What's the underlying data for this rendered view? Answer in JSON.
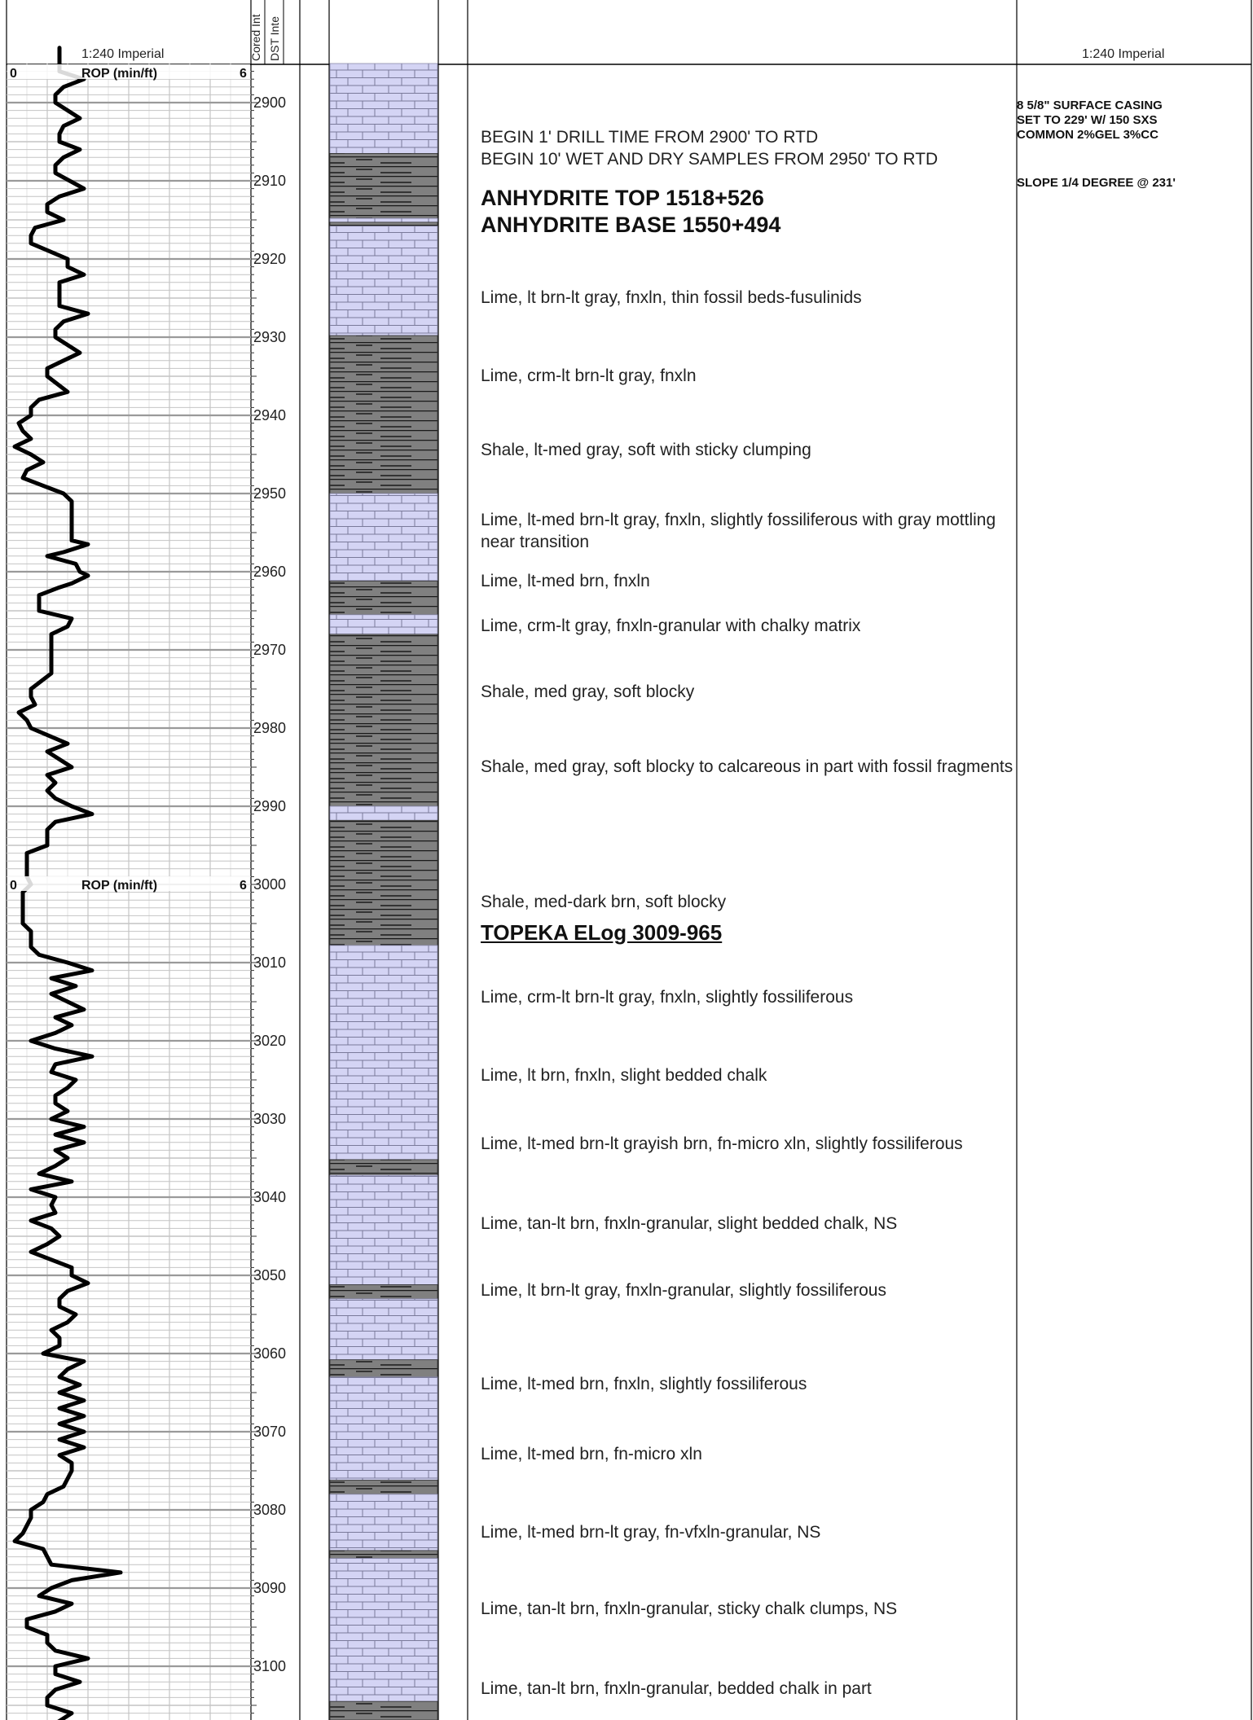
{
  "header": {
    "scale_left": "1:240 Imperial",
    "scale_right": "1:240 Imperial",
    "cored_label": "Cored Int",
    "dst_label": "DST Inte"
  },
  "rop_track": {
    "label": "ROP (min/ft)",
    "min_label": "0",
    "max_label": "6",
    "repeat_at_depth": 3000
  },
  "depth": {
    "top": 2892,
    "bottom": 3108,
    "labels": [
      "2900",
      "2910",
      "2920",
      "2930",
      "2940",
      "2950",
      "2960",
      "2970",
      "2980",
      "2990",
      "3000",
      "3010",
      "3020",
      "3030",
      "3040",
      "3050",
      "3060",
      "3070",
      "3080",
      "3090",
      "3100"
    ]
  },
  "lithology": [
    {
      "from": 2892.5,
      "to": 2906.5,
      "rock": "lime"
    },
    {
      "from": 2906.5,
      "to": 2914.8,
      "rock": "shale"
    },
    {
      "from": 2914.8,
      "to": 2915.3,
      "rock": "lime"
    },
    {
      "from": 2915.3,
      "to": 2915.8,
      "rock": "shale"
    },
    {
      "from": 2915.8,
      "to": 2929.8,
      "rock": "lime"
    },
    {
      "from": 2929.8,
      "to": 2950.0,
      "rock": "shale"
    },
    {
      "from": 2950.0,
      "to": 2961.2,
      "rock": "lime"
    },
    {
      "from": 2961.2,
      "to": 2965.5,
      "rock": "shale"
    },
    {
      "from": 2965.5,
      "to": 2968.0,
      "rock": "lime"
    },
    {
      "from": 2968.0,
      "to": 2990.0,
      "rock": "shale"
    },
    {
      "from": 2990.0,
      "to": 2991.8,
      "rock": "lime"
    },
    {
      "from": 2991.8,
      "to": 3007.8,
      "rock": "shale"
    },
    {
      "from": 3007.8,
      "to": 3035.2,
      "rock": "lime"
    },
    {
      "from": 3035.2,
      "to": 3037.2,
      "rock": "shale"
    },
    {
      "from": 3037.2,
      "to": 3051.2,
      "rock": "lime"
    },
    {
      "from": 3051.2,
      "to": 3053.0,
      "rock": "shale"
    },
    {
      "from": 3053.0,
      "to": 3060.8,
      "rock": "lime"
    },
    {
      "from": 3060.8,
      "to": 3063.0,
      "rock": "shale"
    },
    {
      "from": 3063.0,
      "to": 3076.2,
      "rock": "lime"
    },
    {
      "from": 3076.2,
      "to": 3078.0,
      "rock": "shale"
    },
    {
      "from": 3078.0,
      "to": 3085.2,
      "rock": "lime"
    },
    {
      "from": 3085.2,
      "to": 3086.2,
      "rock": "shale"
    },
    {
      "from": 3086.2,
      "to": 3104.5,
      "rock": "lime"
    },
    {
      "from": 3104.5,
      "to": 3108.0,
      "rock": "shale"
    }
  ],
  "rop_curve": [
    [
      2893,
      1.3
    ],
    [
      2894,
      1.3
    ],
    [
      2896,
      1.3
    ],
    [
      2897,
      1.9
    ],
    [
      2898,
      1.4
    ],
    [
      2899,
      1.2
    ],
    [
      2900,
      1.2
    ],
    [
      2902,
      1.8
    ],
    [
      2903,
      1.4
    ],
    [
      2904,
      1.3
    ],
    [
      2905,
      1.3
    ],
    [
      2906,
      1.8
    ],
    [
      2907,
      1.4
    ],
    [
      2908,
      1.2
    ],
    [
      2909,
      1.2
    ],
    [
      2911,
      1.9
    ],
    [
      2912,
      1.3
    ],
    [
      2913,
      1.0
    ],
    [
      2914,
      1.0
    ],
    [
      2915,
      1.4
    ],
    [
      2916,
      0.7
    ],
    [
      2917,
      0.6
    ],
    [
      2918,
      0.6
    ],
    [
      2920,
      1.5
    ],
    [
      2921,
      1.5
    ],
    [
      2922,
      1.9
    ],
    [
      2923,
      1.3
    ],
    [
      2924,
      1.3
    ],
    [
      2925,
      1.3
    ],
    [
      2926,
      1.3
    ],
    [
      2927,
      2.0
    ],
    [
      2928,
      1.4
    ],
    [
      2929,
      1.2
    ],
    [
      2930,
      1.2
    ],
    [
      2932,
      1.8
    ],
    [
      2933,
      1.4
    ],
    [
      2934,
      1.0
    ],
    [
      2935,
      1.0
    ],
    [
      2937,
      1.5
    ],
    [
      2938,
      0.8
    ],
    [
      2939,
      0.6
    ],
    [
      2940,
      0.6
    ],
    [
      2941,
      0.3
    ],
    [
      2942,
      0.4
    ],
    [
      2943,
      0.6
    ],
    [
      2944,
      0.2
    ],
    [
      2945,
      0.6
    ],
    [
      2946,
      0.9
    ],
    [
      2947,
      0.5
    ],
    [
      2948,
      0.4
    ],
    [
      2949,
      0.9
    ],
    [
      2950,
      1.4
    ],
    [
      2951,
      1.6
    ],
    [
      2952,
      1.6
    ],
    [
      2953,
      1.6
    ],
    [
      2954,
      1.6
    ],
    [
      2955,
      1.6
    ],
    [
      2956,
      1.6
    ],
    [
      2956.5,
      2.0
    ],
    [
      2957.5,
      1.4
    ],
    [
      2958,
      1.0
    ],
    [
      2959,
      1.7
    ],
    [
      2960,
      1.8
    ],
    [
      2960.5,
      2.0
    ],
    [
      2961.5,
      1.6
    ],
    [
      2962,
      1.3
    ],
    [
      2963,
      0.8
    ],
    [
      2964,
      0.8
    ],
    [
      2965,
      0.8
    ],
    [
      2966,
      1.6
    ],
    [
      2967,
      1.5
    ],
    [
      2968,
      1.1
    ],
    [
      2969,
      1.1
    ],
    [
      2970,
      1.1
    ],
    [
      2971,
      1.1
    ],
    [
      2972,
      1.1
    ],
    [
      2973,
      1.1
    ],
    [
      2975,
      0.6
    ],
    [
      2976,
      0.6
    ],
    [
      2977,
      0.7
    ],
    [
      2978,
      0.3
    ],
    [
      2979,
      0.5
    ],
    [
      2980,
      0.6
    ],
    [
      2982,
      1.5
    ],
    [
      2983,
      1.0
    ],
    [
      2985,
      1.6
    ],
    [
      2986,
      1.0
    ],
    [
      2987,
      1.2
    ],
    [
      2988,
      1.0
    ],
    [
      2989,
      1.2
    ],
    [
      2990,
      1.6
    ],
    [
      2991,
      2.1
    ],
    [
      2992,
      1.2
    ],
    [
      2993,
      1.0
    ],
    [
      2994,
      1.0
    ],
    [
      2995,
      1.0
    ],
    [
      2996,
      0.5
    ],
    [
      2997,
      0.5
    ],
    [
      2998,
      0.5
    ],
    [
      2999,
      0.5
    ],
    [
      3000,
      0.6
    ],
    [
      3001,
      0.4
    ],
    [
      3002,
      0.4
    ],
    [
      3003,
      0.4
    ],
    [
      3004,
      0.4
    ],
    [
      3005,
      0.4
    ],
    [
      3006,
      0.6
    ],
    [
      3007,
      0.6
    ],
    [
      3008,
      0.6
    ],
    [
      3009,
      0.8
    ],
    [
      3010,
      1.5
    ],
    [
      3011,
      2.1
    ],
    [
      3012,
      1.1
    ],
    [
      3013,
      1.7
    ],
    [
      3014,
      1.1
    ],
    [
      3015,
      1.5
    ],
    [
      3016,
      1.9
    ],
    [
      3017,
      1.2
    ],
    [
      3018,
      1.6
    ],
    [
      3019,
      1.2
    ],
    [
      3020,
      0.6
    ],
    [
      3021,
      1.2
    ],
    [
      3022,
      2.1
    ],
    [
      3023,
      1.2
    ],
    [
      3024,
      1.1
    ],
    [
      3025,
      1.7
    ],
    [
      3026,
      1.5
    ],
    [
      3027,
      1.2
    ],
    [
      3028,
      1.2
    ],
    [
      3029,
      1.5
    ],
    [
      3030,
      1.1
    ],
    [
      3031,
      1.9
    ],
    [
      3032,
      1.2
    ],
    [
      3033,
      1.9
    ],
    [
      3034,
      1.2
    ],
    [
      3035,
      1.5
    ],
    [
      3036,
      1.2
    ],
    [
      3037,
      0.8
    ],
    [
      3038,
      1.6
    ],
    [
      3039,
      0.6
    ],
    [
      3040,
      1.2
    ],
    [
      3041,
      1.1
    ],
    [
      3042,
      1.2
    ],
    [
      3043,
      0.6
    ],
    [
      3044,
      1.1
    ],
    [
      3045,
      1.3
    ],
    [
      3046,
      1.0
    ],
    [
      3047,
      0.6
    ],
    [
      3048,
      1.1
    ],
    [
      3049,
      1.6
    ],
    [
      3050,
      1.6
    ],
    [
      3051,
      2.0
    ],
    [
      3052,
      1.5
    ],
    [
      3053,
      1.3
    ],
    [
      3054,
      1.3
    ],
    [
      3055,
      1.7
    ],
    [
      3056,
      1.5
    ],
    [
      3057,
      1.1
    ],
    [
      3058,
      1.3
    ],
    [
      3059,
      1.3
    ],
    [
      3060,
      0.9
    ],
    [
      3061,
      1.9
    ],
    [
      3062,
      1.5
    ],
    [
      3063,
      1.3
    ],
    [
      3064,
      1.8
    ],
    [
      3065,
      1.3
    ],
    [
      3066,
      1.9
    ],
    [
      3067,
      1.3
    ],
    [
      3068,
      1.9
    ],
    [
      3069,
      1.3
    ],
    [
      3070,
      1.9
    ],
    [
      3071,
      1.3
    ],
    [
      3072,
      1.9
    ],
    [
      3073,
      1.3
    ],
    [
      3074,
      1.6
    ],
    [
      3075,
      1.6
    ],
    [
      3076,
      1.5
    ],
    [
      3077,
      1.4
    ],
    [
      3078,
      1.0
    ],
    [
      3079,
      0.9
    ],
    [
      3080,
      0.6
    ],
    [
      3081,
      0.6
    ],
    [
      3082,
      0.5
    ],
    [
      3083,
      0.4
    ],
    [
      3084,
      0.2
    ],
    [
      3085,
      0.9
    ],
    [
      3086,
      1.0
    ],
    [
      3087,
      1.1
    ],
    [
      3088,
      2.8
    ],
    [
      3089,
      1.6
    ],
    [
      3090,
      1.1
    ],
    [
      3091,
      0.8
    ],
    [
      3092,
      1.6
    ],
    [
      3093,
      1.2
    ],
    [
      3094,
      0.5
    ],
    [
      3095,
      0.5
    ],
    [
      3096,
      1.0
    ],
    [
      3097,
      1.0
    ],
    [
      3098,
      1.2
    ],
    [
      3099,
      2.0
    ],
    [
      3100,
      1.2
    ],
    [
      3101,
      1.2
    ],
    [
      3102,
      1.8
    ],
    [
      3103,
      1.2
    ],
    [
      3104,
      1.0
    ],
    [
      3105,
      1.0
    ],
    [
      3106,
      1.6
    ],
    [
      3107,
      1.3
    ],
    [
      3108,
      1.0
    ]
  ],
  "descriptions": [
    {
      "depth": 2903.0,
      "text": "BEGIN 1' DRILL TIME FROM 2900' TO RTD\nBEGIN 10' WET AND DRY SAMPLES FROM 2950' TO RTD",
      "style": "note"
    },
    {
      "depth": 2910.5,
      "text": "ANHYDRITE TOP 1518+526\nANHYDRITE BASE 1550+494",
      "style": "header"
    },
    {
      "depth": 2923.5,
      "text": "Lime, lt brn-lt gray, fnxln, thin fossil beds-fusulinids",
      "style": "text"
    },
    {
      "depth": 2933.5,
      "text": "Lime, crm-lt brn-lt gray, fnxln",
      "style": "text"
    },
    {
      "depth": 2943.0,
      "text": "Shale, lt-med gray, soft with sticky clumping",
      "style": "text"
    },
    {
      "depth": 2952.0,
      "text": "Lime, lt-med brn-lt gray, fnxln, slightly fossiliferous with gray mottling near transition",
      "style": "text"
    },
    {
      "depth": 2959.8,
      "text": "Lime, lt-med brn, fnxln",
      "style": "text"
    },
    {
      "depth": 2965.5,
      "text": "Lime, crm-lt gray, fnxln-granular with chalky matrix",
      "style": "text"
    },
    {
      "depth": 2974.0,
      "text": "Shale, med gray, soft blocky",
      "style": "text"
    },
    {
      "depth": 2983.5,
      "text": "Shale, med gray, soft blocky to calcareous in part with fossil fragments",
      "style": "text"
    },
    {
      "depth": 3000.8,
      "text": "Shale, med-dark brn, soft blocky",
      "style": "text"
    },
    {
      "depth": 3004.5,
      "text": "TOPEKA ELog 3009-965",
      "style": "top"
    },
    {
      "depth": 3013.0,
      "text": "Lime, crm-lt brn-lt gray, fnxln, slightly fossiliferous",
      "style": "text"
    },
    {
      "depth": 3023.0,
      "text": "Lime, lt brn, fnxln, slight bedded chalk",
      "style": "text"
    },
    {
      "depth": 3031.8,
      "text": "Lime, lt-med brn-lt grayish brn, fn-micro xln, slightly fossiliferous",
      "style": "text"
    },
    {
      "depth": 3042.0,
      "text": "Lime, tan-lt brn, fnxln-granular, slight bedded chalk, NS",
      "style": "text"
    },
    {
      "depth": 3050.5,
      "text": "Lime, lt brn-lt gray, fnxln-granular, slightly fossiliferous",
      "style": "text"
    },
    {
      "depth": 3062.5,
      "text": "Lime, lt-med brn, fnxln, slightly fossiliferous",
      "style": "text"
    },
    {
      "depth": 3071.5,
      "text": "Lime, lt-med brn, fn-micro xln",
      "style": "text"
    },
    {
      "depth": 3081.5,
      "text": "Lime, lt-med brn-lt gray, fn-vfxln-granular, NS",
      "style": "text"
    },
    {
      "depth": 3091.3,
      "text": "Lime, tan-lt brn, fnxln-granular, sticky chalk clumps, NS",
      "style": "text"
    },
    {
      "depth": 3101.5,
      "text": "Lime, tan-lt brn, fnxln-granular, bedded chalk in part",
      "style": "text"
    }
  ],
  "remarks": [
    {
      "text": "8 5/8\" SURFACE CASING\nSET TO 229' W/ 150 SXS\nCOMMON 2%GEL 3%CC"
    },
    {
      "text": "SLOPE 1/4 DEGREE @ 231'"
    }
  ],
  "colors": {
    "lime_fill": "#d4d4f4",
    "shale_fill": "#808080",
    "grid_major": "#9a9a9a",
    "grid_minor": "#c4c4c4",
    "curve": "#000000"
  }
}
